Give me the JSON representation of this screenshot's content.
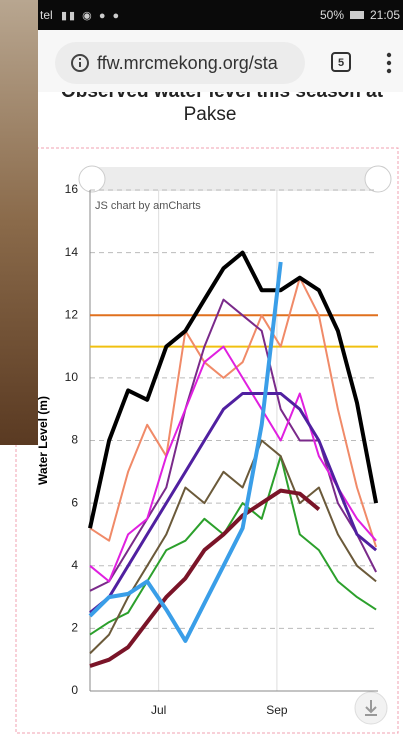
{
  "browser": {
    "carrier": "tel",
    "battery": "50%",
    "time": "21:05",
    "url": "ffw.mrcmekong.org/sta",
    "tabs": "5"
  },
  "chart_data": {
    "type": "line",
    "title_lines": [
      "Observed water level this season at",
      "Pakse"
    ],
    "credit": "JS chart by amCharts",
    "y_label": "Water Level (m)",
    "x": [
      0,
      10,
      20,
      30,
      40,
      50,
      60,
      70,
      80,
      90,
      100,
      110,
      120,
      130,
      140,
      150
    ],
    "xlim": [
      0,
      151
    ],
    "xticks": [
      {
        "value": 36,
        "label": "Jul"
      },
      {
        "value": 98,
        "label": "Sep"
      }
    ],
    "ylim": [
      0,
      16
    ],
    "yticks": [
      0,
      2,
      4,
      6,
      8,
      10,
      12,
      14,
      16
    ],
    "grid": true,
    "thresholds": [
      {
        "value": 12,
        "color": "#e0701e"
      },
      {
        "value": 11,
        "color": "#f0c010"
      }
    ],
    "series": [
      {
        "color": "#f08a68",
        "width": 2,
        "values": [
          5.2,
          4.8,
          7.0,
          8.5,
          7.5,
          11.5,
          10.5,
          10.0,
          10.5,
          12.0,
          11.0,
          13.2,
          12.0,
          9.0,
          6.5,
          4.6
        ]
      },
      {
        "color": "#7a2a8a",
        "width": 2,
        "values": [
          3.2,
          3.5,
          4.5,
          5.5,
          6.5,
          9.0,
          11.0,
          12.5,
          12.0,
          11.5,
          9.0,
          8.0,
          8.0,
          6.0,
          5.0,
          3.8
        ]
      },
      {
        "color": "#e020e0",
        "width": 2,
        "values": [
          4.0,
          3.5,
          5.0,
          5.5,
          7.5,
          9.0,
          10.5,
          11.0,
          10.0,
          9.0,
          8.0,
          9.5,
          7.5,
          6.5,
          5.5,
          4.8
        ]
      },
      {
        "color": "#2ca02c",
        "width": 2,
        "values": [
          1.8,
          2.2,
          2.5,
          3.5,
          4.5,
          4.8,
          5.5,
          5.0,
          6.0,
          5.5,
          7.5,
          5.0,
          4.5,
          3.5,
          3.0,
          2.6
        ]
      },
      {
        "color": "#6b5a3a",
        "width": 2,
        "values": [
          1.2,
          1.8,
          3.0,
          4.0,
          5.0,
          6.5,
          6.0,
          7.0,
          6.5,
          8.0,
          7.5,
          6.0,
          6.5,
          5.0,
          4.0,
          3.5
        ]
      },
      {
        "color": "#5020a0",
        "width": 3,
        "values": [
          2.5,
          3.0,
          4.0,
          5.0,
          6.0,
          7.0,
          8.0,
          9.0,
          9.5,
          9.5,
          9.5,
          9.0,
          8.0,
          6.5,
          5.0,
          4.5
        ]
      },
      {
        "color": "#7a1428",
        "width": 4,
        "values": [
          0.8,
          1.0,
          1.4,
          2.2,
          3.0,
          3.6,
          4.5,
          5.0,
          5.6,
          6.0,
          6.4,
          6.3,
          5.8,
          null,
          null,
          null
        ]
      },
      {
        "color": "#000000",
        "width": 4,
        "values": [
          5.2,
          8.0,
          9.6,
          9.3,
          11.0,
          11.5,
          12.5,
          13.5,
          14.0,
          12.8,
          12.8,
          13.2,
          12.8,
          11.5,
          9.2,
          6.0
        ]
      },
      {
        "color": "#3a9ee8",
        "width": 4,
        "values": [
          2.4,
          3.0,
          3.1,
          3.5,
          2.6,
          1.6,
          2.8,
          4.0,
          5.2,
          8.5,
          13.7,
          null,
          null,
          null,
          null,
          null
        ]
      }
    ]
  }
}
